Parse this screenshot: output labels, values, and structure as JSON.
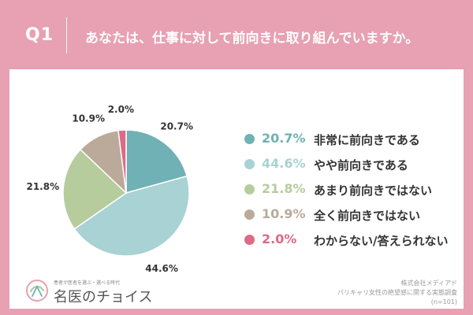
{
  "header": {
    "question_number": "Q1",
    "question_text": "あなたは、仕事に対して前向きに取り組んでいますか。"
  },
  "chart_data": {
    "type": "pie",
    "title": "",
    "slices": [
      {
        "label": "非常に前向きである",
        "value": 20.7,
        "value_label": "20.7%",
        "color": "#6fb1b5"
      },
      {
        "label": "やや前向きである",
        "value": 44.6,
        "value_label": "44.6%",
        "color": "#a8d2d3"
      },
      {
        "label": "あまり前向きではない",
        "value": 21.8,
        "value_label": "21.8%",
        "color": "#b6cc9d"
      },
      {
        "label": "全く前向きではない",
        "value": 10.9,
        "value_label": "10.9%",
        "color": "#bba999"
      },
      {
        "label": "わからない/答えられない",
        "value": 2.0,
        "value_label": "2.0%",
        "color": "#de6a85"
      }
    ],
    "start_angle": "12 o'clock",
    "direction": "clockwise",
    "legend_position": "right"
  },
  "logo": {
    "tagline": "患者が医者を選ぶ・選べる時代",
    "name": "名医のチョイス"
  },
  "source": {
    "line1": "株式会社メディアド",
    "line2": "バリキャリ女性の絶望感に関する実態調査",
    "line3": "(n=101)"
  },
  "colors": {
    "frame": "#e8a0b3",
    "card": "#ffffff",
    "header_text": "#ffffff"
  }
}
